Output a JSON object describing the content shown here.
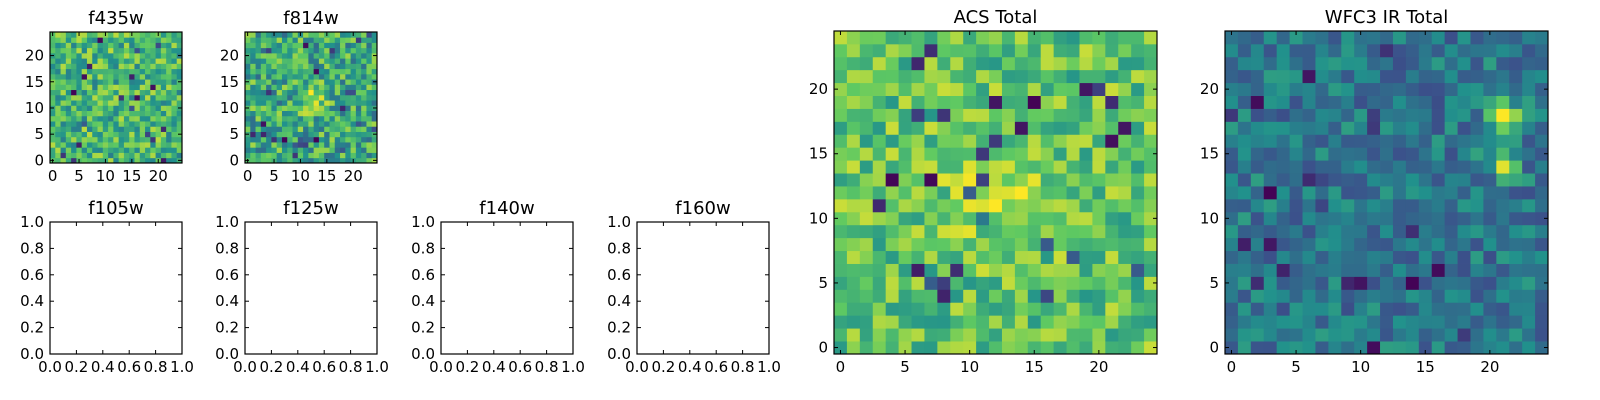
{
  "colors": {
    "colormap": "viridis",
    "viridis_stops": [
      "#440154",
      "#3b528b",
      "#21918c",
      "#5ec962",
      "#fde725"
    ],
    "axes": "#000000",
    "background": "#ffffff"
  },
  "chart_data": [
    {
      "type": "heatmap",
      "title": "f435w",
      "grid_size": [
        25,
        25
      ],
      "xlim": [
        -0.5,
        24.5
      ],
      "ylim": [
        -0.5,
        24.5
      ],
      "xticks": [
        0,
        5,
        10,
        15,
        20
      ],
      "yticks": [
        0,
        5,
        10,
        15,
        20
      ],
      "value_range": [
        0,
        1
      ],
      "background_level": 0.66,
      "noise_amplitude": 0.24,
      "sources": [],
      "grid": false
    },
    {
      "type": "heatmap",
      "title": "f814w",
      "grid_size": [
        25,
        25
      ],
      "xlim": [
        -0.5,
        24.5
      ],
      "ylim": [
        -0.5,
        24.5
      ],
      "xticks": [
        0,
        5,
        10,
        15,
        20
      ],
      "yticks": [
        0,
        5,
        10,
        15,
        20
      ],
      "value_range": [
        0,
        1
      ],
      "background_level": 0.6,
      "noise_amplitude": 0.26,
      "sources": [
        {
          "x": 12,
          "y": 12,
          "sigma": 1.6,
          "amplitude": 0.45
        }
      ],
      "grid": false
    },
    {
      "type": "heatmap",
      "title": "f105w",
      "xlim": [
        0.0,
        1.0
      ],
      "ylim": [
        0.0,
        1.0
      ],
      "xticks": [
        "0.0",
        "0.2",
        "0.4",
        "0.6",
        "0.8",
        "1.0"
      ],
      "yticks": [
        "0.0",
        "0.2",
        "0.4",
        "0.6",
        "0.8",
        "1.0"
      ],
      "empty": true,
      "grid": false
    },
    {
      "type": "heatmap",
      "title": "f125w",
      "xlim": [
        0.0,
        1.0
      ],
      "ylim": [
        0.0,
        1.0
      ],
      "xticks": [
        "0.0",
        "0.2",
        "0.4",
        "0.6",
        "0.8",
        "1.0"
      ],
      "yticks": [
        "0.0",
        "0.2",
        "0.4",
        "0.6",
        "0.8",
        "1.0"
      ],
      "empty": true,
      "grid": false
    },
    {
      "type": "heatmap",
      "title": "f140w",
      "xlim": [
        0.0,
        1.0
      ],
      "ylim": [
        0.0,
        1.0
      ],
      "xticks": [
        "0.0",
        "0.2",
        "0.4",
        "0.6",
        "0.8",
        "1.0"
      ],
      "yticks": [
        "0.0",
        "0.2",
        "0.4",
        "0.6",
        "0.8",
        "1.0"
      ],
      "empty": true,
      "grid": false
    },
    {
      "type": "heatmap",
      "title": "f160w",
      "xlim": [
        0.0,
        1.0
      ],
      "ylim": [
        0.0,
        1.0
      ],
      "xticks": [
        "0.0",
        "0.2",
        "0.4",
        "0.6",
        "0.8",
        "1.0"
      ],
      "yticks": [
        "0.0",
        "0.2",
        "0.4",
        "0.6",
        "0.8",
        "1.0"
      ],
      "empty": true,
      "grid": false
    },
    {
      "type": "heatmap",
      "title": "ACS Total",
      "grid_size": [
        25,
        25
      ],
      "xlim": [
        -0.5,
        24.5
      ],
      "ylim": [
        -0.5,
        24.5
      ],
      "xticks": [
        0,
        5,
        10,
        15,
        20
      ],
      "yticks": [
        0,
        5,
        10,
        15,
        20
      ],
      "value_range": [
        0,
        1
      ],
      "background_level": 0.72,
      "noise_amplitude": 0.2,
      "sources": [
        {
          "x": 12.5,
          "y": 12,
          "sigma": 2.5,
          "amplitude": 0.22
        }
      ],
      "grid": false
    },
    {
      "type": "heatmap",
      "title": "WFC3 IR Total",
      "grid_size": [
        25,
        25
      ],
      "xlim": [
        -0.5,
        24.5
      ],
      "ylim": [
        -0.5,
        24.5
      ],
      "xticks": [
        0,
        5,
        10,
        15,
        20
      ],
      "yticks": [
        0,
        5,
        10,
        15,
        20
      ],
      "value_range": [
        0,
        1
      ],
      "background_level": 0.4,
      "noise_amplitude": 0.16,
      "sources": [
        {
          "x": 21,
          "y": 18,
          "sigma": 0.9,
          "amplitude": 0.6
        },
        {
          "x": 21,
          "y": 14.5,
          "sigma": 0.8,
          "amplitude": 0.5
        }
      ],
      "grid": false
    }
  ]
}
